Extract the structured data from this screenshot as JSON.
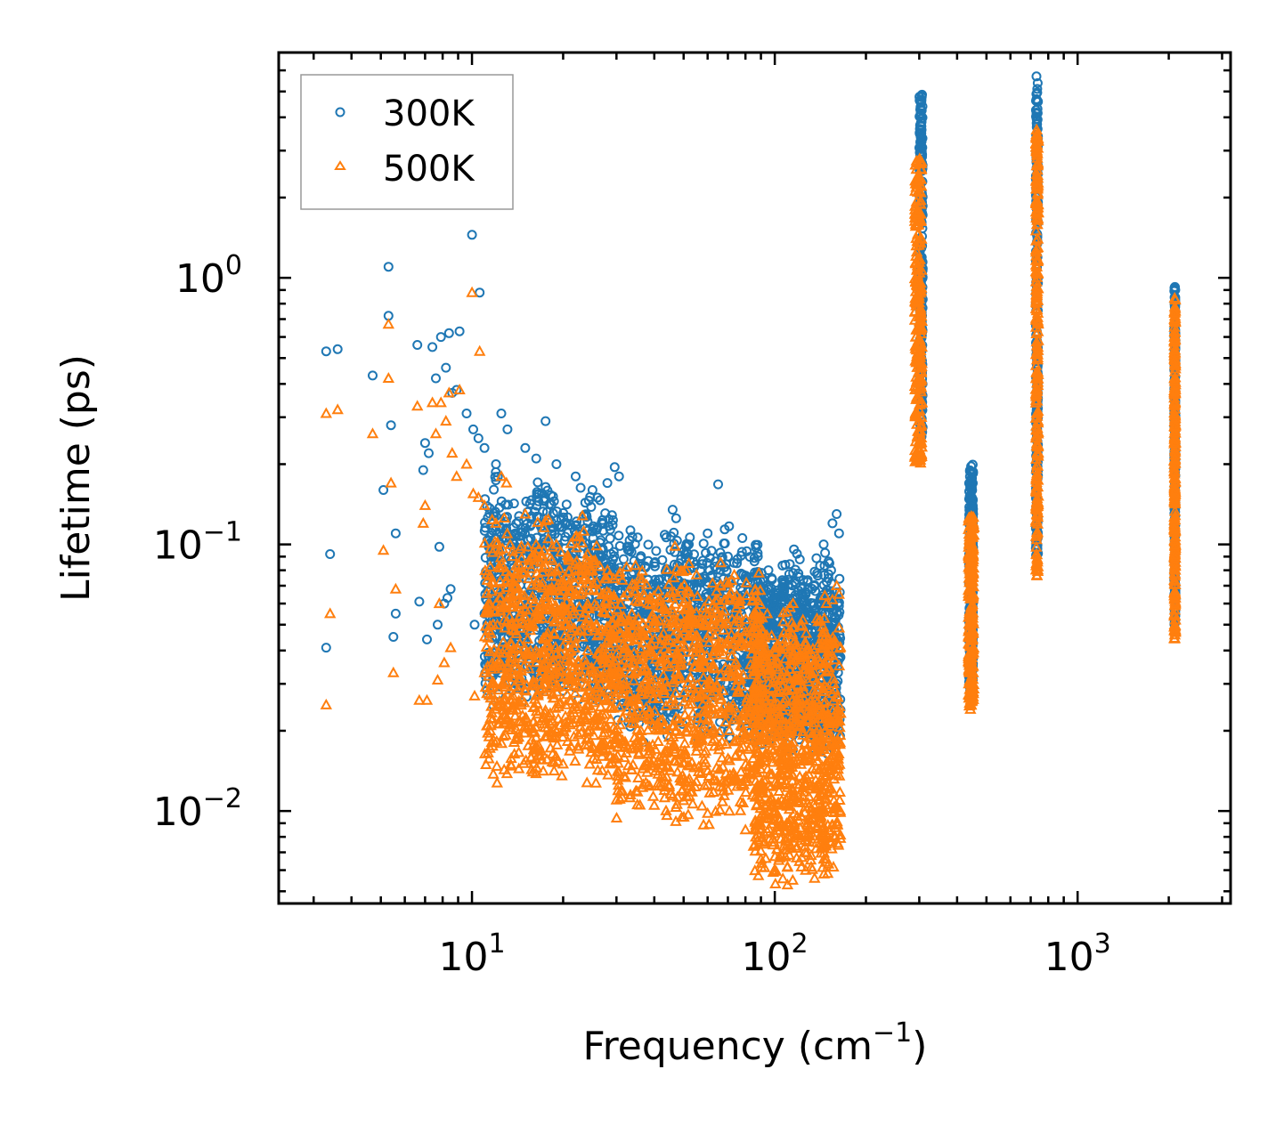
{
  "chart_data": {
    "type": "scatter",
    "xscale": "log",
    "yscale": "log",
    "xlim": [
      2.3,
      3200
    ],
    "ylim": [
      0.0045,
      7.0
    ],
    "xlabel": {
      "text": "Frequency (cm",
      "sup": "−1",
      "close": ")"
    },
    "ylabel": "Lifetime (ps)",
    "grid": false,
    "legend_position": "top-left",
    "x_ticks": [
      {
        "value": 10,
        "base": "10",
        "exp": "1"
      },
      {
        "value": 100,
        "base": "10",
        "exp": "2"
      },
      {
        "value": 1000,
        "base": "10",
        "exp": "3"
      }
    ],
    "y_ticks": [
      {
        "value": 0.01,
        "base": "10",
        "exp": "−2"
      },
      {
        "value": 0.1,
        "base": "10",
        "exp": "−1"
      },
      {
        "value": 1,
        "base": "10",
        "exp": "0"
      }
    ],
    "series": [
      {
        "name": "300K",
        "marker": "circle",
        "color": "#1f77b4",
        "points": [
          [
            3.3,
            0.53
          ],
          [
            3.6,
            0.54
          ],
          [
            3.4,
            0.092
          ],
          [
            3.3,
            0.041
          ],
          [
            4.7,
            0.43
          ],
          [
            5.3,
            1.1
          ],
          [
            5.3,
            0.72
          ],
          [
            5.4,
            0.28
          ],
          [
            5.1,
            0.16
          ],
          [
            5.6,
            0.11
          ],
          [
            5.6,
            0.055
          ],
          [
            5.5,
            0.045
          ],
          [
            6.6,
            0.56
          ],
          [
            6.9,
            0.19
          ],
          [
            7.4,
            0.55
          ],
          [
            7.9,
            0.6
          ],
          [
            8.4,
            0.62
          ],
          [
            9.1,
            0.63
          ],
          [
            7.6,
            0.42
          ],
          [
            8.2,
            0.46
          ],
          [
            8.6,
            0.37
          ],
          [
            8.9,
            0.38
          ],
          [
            7.0,
            0.24
          ],
          [
            7.2,
            0.22
          ],
          [
            7.8,
            0.098
          ],
          [
            8.5,
            0.068
          ],
          [
            6.7,
            0.061
          ],
          [
            7.1,
            0.044
          ],
          [
            7.7,
            0.05
          ],
          [
            8.1,
            0.06
          ],
          [
            8.3,
            0.063
          ],
          [
            9.6,
            0.31
          ],
          [
            10.0,
            1.45
          ],
          [
            10.6,
            0.88
          ],
          [
            10.1,
            0.27
          ],
          [
            10.5,
            0.25
          ],
          [
            11.0,
            0.23
          ],
          [
            12.5,
            0.31
          ],
          [
            13.1,
            0.27
          ],
          [
            17.5,
            0.29
          ],
          [
            12.0,
            0.2
          ],
          [
            15.0,
            0.23
          ],
          [
            16.3,
            0.21
          ],
          [
            19.0,
            0.2
          ],
          [
            22.0,
            0.18
          ],
          [
            29.6,
            0.195
          ],
          [
            30.6,
            0.18
          ],
          [
            28.0,
            0.17
          ],
          [
            25.0,
            0.16
          ],
          [
            10.2,
            0.05
          ],
          [
            11.0,
            0.055
          ],
          [
            12.0,
            0.063
          ],
          [
            40.0,
            0.085
          ],
          [
            46.0,
            0.135
          ],
          [
            52.0,
            0.1
          ],
          [
            65.0,
            0.168
          ],
          [
            60.0,
            0.11
          ],
          [
            70.0,
            0.09
          ],
          [
            75.0,
            0.085
          ],
          [
            85.0,
            0.065
          ],
          [
            104.0,
            0.064
          ],
          [
            118.0,
            0.055
          ],
          [
            128.0,
            0.058
          ],
          [
            138.0,
            0.078
          ],
          [
            145.0,
            0.1
          ],
          [
            155.0,
            0.12
          ],
          [
            160.0,
            0.13
          ],
          [
            163.0,
            0.11
          ]
        ],
        "bands": [
          {
            "x": [
              300,
              308
            ],
            "y": [
              0.25,
              4.9
            ]
          },
          {
            "x": [
              438,
              452
            ],
            "y": [
              0.028,
              0.2
            ]
          },
          {
            "x": [
              728,
              740
            ],
            "y": [
              0.09,
              5.8
            ]
          },
          {
            "x": [
              2085,
              2105
            ],
            "y": [
              0.05,
              0.93
            ]
          }
        ],
        "clouds": [
          {
            "x": [
              11,
              30
            ],
            "y": [
              0.03,
              0.17
            ]
          },
          {
            "x": [
              30,
              90
            ],
            "y": [
              0.022,
              0.12
            ]
          },
          {
            "x": [
              85,
              165
            ],
            "y": [
              0.02,
              0.095
            ]
          }
        ]
      },
      {
        "name": "500K",
        "marker": "triangle",
        "color": "#ff7f0e",
        "points": [
          [
            3.3,
            0.31
          ],
          [
            3.6,
            0.32
          ],
          [
            3.4,
            0.055
          ],
          [
            3.3,
            0.025
          ],
          [
            4.7,
            0.26
          ],
          [
            5.3,
            0.67
          ],
          [
            5.3,
            0.42
          ],
          [
            5.4,
            0.17
          ],
          [
            5.1,
            0.095
          ],
          [
            5.6,
            0.068
          ],
          [
            5.5,
            0.033
          ],
          [
            6.6,
            0.33
          ],
          [
            6.9,
            0.12
          ],
          [
            7.4,
            0.34
          ],
          [
            7.9,
            0.34
          ],
          [
            8.4,
            0.37
          ],
          [
            9.1,
            0.38
          ],
          [
            7.6,
            0.26
          ],
          [
            8.2,
            0.29
          ],
          [
            8.6,
            0.22
          ],
          [
            8.9,
            0.18
          ],
          [
            7.0,
            0.14
          ],
          [
            7.8,
            0.06
          ],
          [
            8.5,
            0.041
          ],
          [
            6.7,
            0.026
          ],
          [
            7.1,
            0.026
          ],
          [
            7.7,
            0.031
          ],
          [
            8.1,
            0.036
          ],
          [
            9.6,
            0.2
          ],
          [
            10.0,
            0.88
          ],
          [
            10.6,
            0.53
          ],
          [
            10.1,
            0.155
          ],
          [
            10.5,
            0.15
          ],
          [
            11.0,
            0.14
          ],
          [
            12.5,
            0.18
          ],
          [
            13.0,
            0.17
          ],
          [
            12.0,
            0.12
          ],
          [
            15.0,
            0.13
          ],
          [
            19.0,
            0.1
          ],
          [
            10.2,
            0.027
          ],
          [
            11.0,
            0.033
          ],
          [
            13.0,
            0.022
          ],
          [
            16.0,
            0.017
          ],
          [
            20.0,
            0.015
          ],
          [
            30.0,
            0.011
          ],
          [
            40.0,
            0.0105
          ],
          [
            60.0,
            0.0098
          ],
          [
            80.0,
            0.0085
          ],
          [
            86.0,
            0.0075
          ],
          [
            90.0,
            0.0066
          ],
          [
            100.0,
            0.006
          ],
          [
            110.0,
            0.0075
          ],
          [
            118.0,
            0.0082
          ],
          [
            128.0,
            0.009
          ],
          [
            145.0,
            0.042
          ],
          [
            155.0,
            0.062
          ],
          [
            160.0,
            0.07
          ],
          [
            163.0,
            0.065
          ]
        ],
        "bands": [
          {
            "x": [
              290,
              306
            ],
            "y": [
              0.2,
              2.8
            ]
          },
          {
            "x": [
              436,
              454
            ],
            "y": [
              0.024,
              0.128
            ]
          },
          {
            "x": [
              728,
              742
            ],
            "y": [
              0.075,
              3.6
            ]
          },
          {
            "x": [
              2085,
              2105
            ],
            "y": [
              0.042,
              0.84
            ]
          }
        ],
        "clouds": [
          {
            "x": [
              11,
              30
            ],
            "y": [
              0.015,
              0.12
            ]
          },
          {
            "x": [
              30,
              90
            ],
            "y": [
              0.011,
              0.09
            ]
          },
          {
            "x": [
              85,
              165
            ],
            "y": [
              0.0065,
              0.06
            ]
          }
        ]
      }
    ]
  }
}
